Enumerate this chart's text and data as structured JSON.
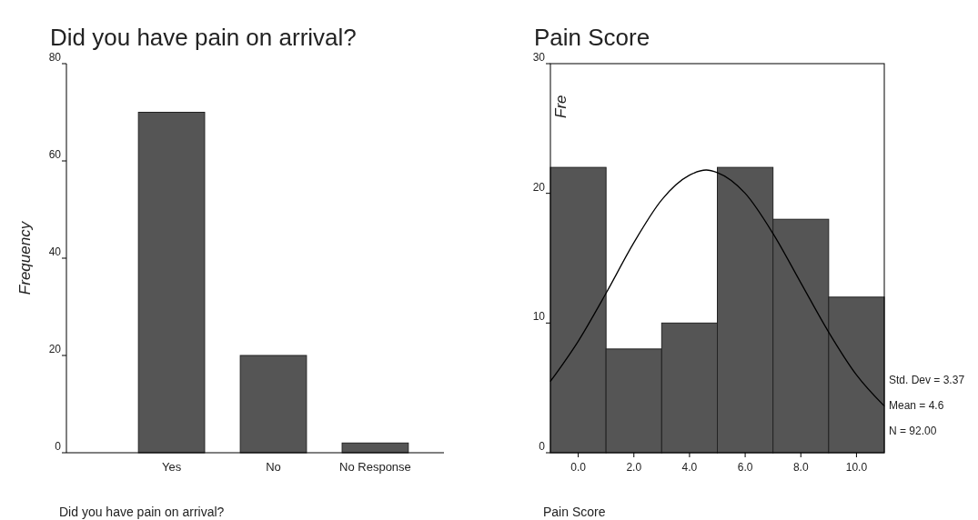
{
  "chart_data": [
    {
      "type": "bar",
      "title": "Did you have pain on arrival?",
      "xlabel": "Did you have pain on arrival?",
      "ylabel": "Frequency",
      "categories": [
        "Yes",
        "No",
        "No Response"
      ],
      "values": [
        70,
        20,
        2
      ],
      "color": "#555555",
      "ylim": [
        0,
        80
      ],
      "yticks": [
        0,
        20,
        40,
        60,
        80
      ],
      "grid": false
    },
    {
      "type": "histogram",
      "title": "Pain Score",
      "xlabel": "Pain Score",
      "ylabel": "Fre",
      "bins": [
        -1,
        1,
        3,
        5,
        7,
        9,
        11
      ],
      "xlim": [
        -1,
        11
      ],
      "xticks": [
        {
          "value": 0,
          "label": "0.0"
        },
        {
          "value": 2,
          "label": "2.0"
        },
        {
          "value": 4,
          "label": "4.0"
        },
        {
          "value": 6,
          "label": "6.0"
        },
        {
          "value": 8,
          "label": "8.0"
        },
        {
          "value": 10,
          "label": "10.0"
        }
      ],
      "ylim": [
        0,
        30
      ],
      "yticks": [
        0,
        10,
        20,
        30
      ],
      "grid": false,
      "series": [
        {
          "type": "histogram",
          "color": "#555555",
          "values": [
            22,
            8,
            10,
            22,
            18,
            12
          ]
        },
        {
          "type": "line",
          "color": "#000000",
          "x": [
            -1,
            0,
            1,
            2,
            3,
            4,
            4.6,
            5,
            6,
            7,
            8,
            9,
            10,
            11
          ],
          "values": [
            5.5,
            8.6,
            12.3,
            16.2,
            19.5,
            21.4,
            21.8,
            21.6,
            20.0,
            16.9,
            13.1,
            9.3,
            6.0,
            3.6
          ]
        }
      ],
      "annotations": [
        "Std. Dev = 3.37",
        "Mean = 4.6",
        "N = 92.00"
      ]
    }
  ]
}
